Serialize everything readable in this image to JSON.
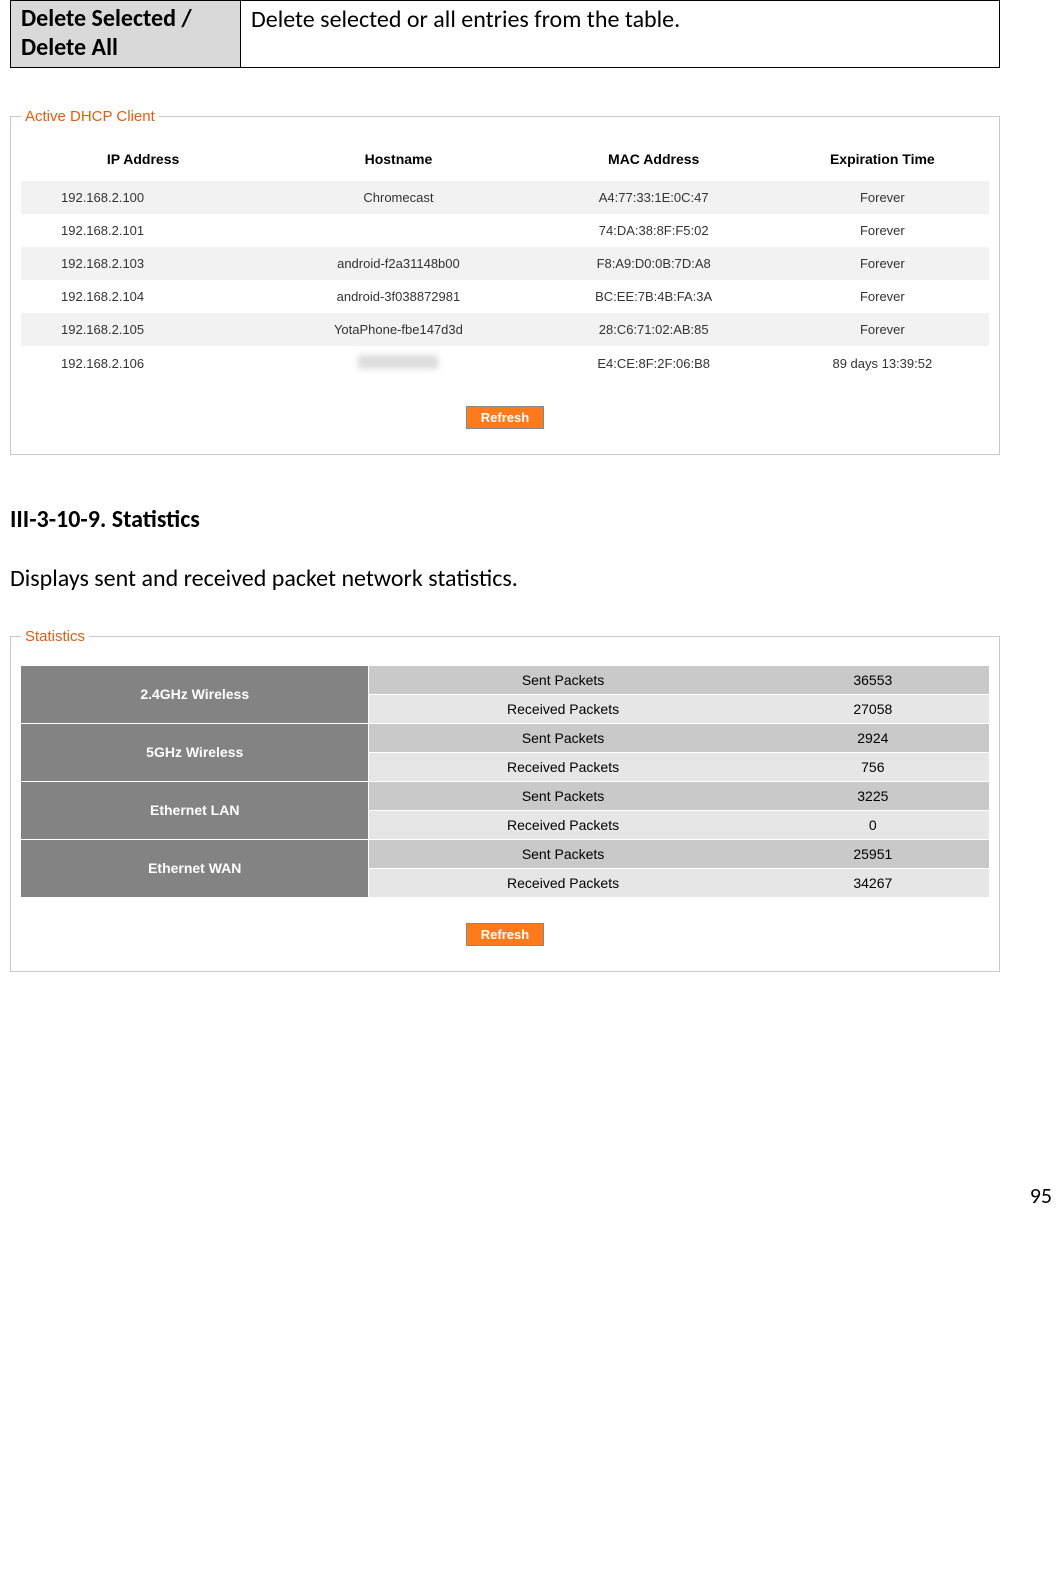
{
  "def_table": {
    "term": "Delete Selected / Delete All",
    "desc": "Delete selected or all entries from the table."
  },
  "dhcp_panel": {
    "legend": "Active DHCP Client",
    "columns": [
      "IP Address",
      "Hostname",
      "MAC Address",
      "Expiration Time"
    ],
    "rows": [
      {
        "ip": "192.168.2.100",
        "host": "Chromecast",
        "mac": "A4:77:33:1E:0C:47",
        "exp": "Forever"
      },
      {
        "ip": "192.168.2.101",
        "host": "",
        "mac": "74:DA:38:8F:F5:02",
        "exp": "Forever"
      },
      {
        "ip": "192.168.2.103",
        "host": "android-f2a31148b00",
        "mac": "F8:A9:D0:0B:7D:A8",
        "exp": "Forever"
      },
      {
        "ip": "192.168.2.104",
        "host": "android-3f038872981",
        "mac": "BC:EE:7B:4B:FA:3A",
        "exp": "Forever"
      },
      {
        "ip": "192.168.2.105",
        "host": "YotaPhone-fbe147d3d",
        "mac": "28:C6:71:02:AB:85",
        "exp": "Forever"
      },
      {
        "ip": "192.168.2.106",
        "host": "[redacted]",
        "mac": "E4:CE:8F:2F:06:B8",
        "exp": "89 days 13:39:52"
      }
    ],
    "refresh_label": "Refresh"
  },
  "section": {
    "heading": "III-3-10-9.  Statistics",
    "paragraph": "Displays sent and received packet network statistics."
  },
  "stats_panel": {
    "legend": "Statistics",
    "metric_sent": "Sent Packets",
    "metric_recv": "Received Packets",
    "interfaces": [
      {
        "name": "2.4GHz  Wireless",
        "sent": "36553",
        "recv": "27058"
      },
      {
        "name": "5GHz  Wireless",
        "sent": "2924",
        "recv": "756"
      },
      {
        "name": "Ethernet LAN",
        "sent": "3225",
        "recv": "0"
      },
      {
        "name": "Ethernet WAN",
        "sent": "25951",
        "recv": "34267"
      }
    ],
    "refresh_label": "Refresh"
  },
  "page_number": "95",
  "colors": {
    "legend": "#e35c0f",
    "button_bg": "#ff7a1a",
    "iface_bg": "#838383",
    "row_odd": "#f2f2f2",
    "row_even": "#ffffff",
    "stats_r0": "#c9c9c9",
    "stats_r1": "#e6e6e6",
    "term_bg": "#d9d9d9"
  }
}
